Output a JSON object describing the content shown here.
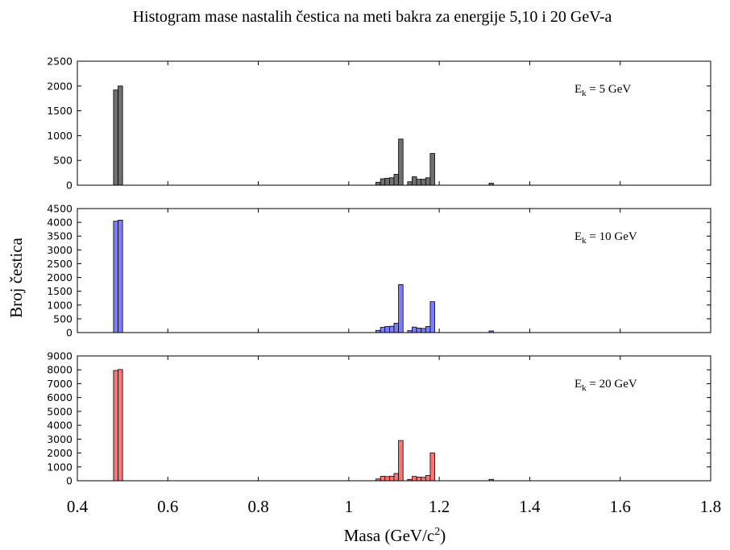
{
  "chart_data": {
    "type": "bar",
    "title": "Histogram mase nastalih čestica na meti bakra za energije 5,10 i 20 GeV-a",
    "xlabel": "Masa (GeV/c²)",
    "xlabel_base": "Masa (GeV/c",
    "xlabel_sup": "2",
    "xlabel_close": ")",
    "ylabel": "Broj čestica",
    "xlim": [
      0.4,
      1.8
    ],
    "xticks": [
      0.4,
      0.6,
      0.8,
      1,
      1.2,
      1.4,
      1.6,
      1.8
    ],
    "xtick_labels": [
      "0.4",
      "0.6",
      "0.8",
      "1",
      "1.2",
      "1.4",
      "1.6",
      "1.8"
    ],
    "bin_width": 0.01,
    "grid": false,
    "panels": [
      {
        "annotation_base": "E",
        "annotation_sub": "k",
        "annotation_rest": " = 5 GeV",
        "color": "#707070",
        "ylim": [
          0,
          2500
        ],
        "yticks": [
          0,
          500,
          1000,
          1500,
          2000,
          2500
        ],
        "bins": [
          {
            "x": 0.485,
            "y": 1920
          },
          {
            "x": 0.495,
            "y": 2000
          },
          {
            "x": 1.065,
            "y": 60
          },
          {
            "x": 1.075,
            "y": 130
          },
          {
            "x": 1.085,
            "y": 140
          },
          {
            "x": 1.095,
            "y": 150
          },
          {
            "x": 1.105,
            "y": 220
          },
          {
            "x": 1.115,
            "y": 930
          },
          {
            "x": 1.135,
            "y": 70
          },
          {
            "x": 1.145,
            "y": 170
          },
          {
            "x": 1.155,
            "y": 120
          },
          {
            "x": 1.165,
            "y": 120
          },
          {
            "x": 1.175,
            "y": 150
          },
          {
            "x": 1.185,
            "y": 640
          },
          {
            "x": 1.315,
            "y": 40
          }
        ]
      },
      {
        "annotation_base": "E",
        "annotation_sub": "k",
        "annotation_rest": " = 10 GeV",
        "color": "#7d7dff",
        "ylim": [
          0,
          4500
        ],
        "yticks": [
          0,
          500,
          1000,
          1500,
          2000,
          2500,
          3000,
          3500,
          4000,
          4500
        ],
        "bins": [
          {
            "x": 0.485,
            "y": 4040
          },
          {
            "x": 0.495,
            "y": 4080
          },
          {
            "x": 1.065,
            "y": 80
          },
          {
            "x": 1.075,
            "y": 190
          },
          {
            "x": 1.085,
            "y": 220
          },
          {
            "x": 1.095,
            "y": 230
          },
          {
            "x": 1.105,
            "y": 340
          },
          {
            "x": 1.115,
            "y": 1740
          },
          {
            "x": 1.135,
            "y": 70
          },
          {
            "x": 1.145,
            "y": 200
          },
          {
            "x": 1.155,
            "y": 160
          },
          {
            "x": 1.165,
            "y": 150
          },
          {
            "x": 1.175,
            "y": 220
          },
          {
            "x": 1.185,
            "y": 1120
          },
          {
            "x": 1.315,
            "y": 60
          }
        ]
      },
      {
        "annotation_base": "E",
        "annotation_sub": "k",
        "annotation_rest": " = 20 GeV",
        "color": "#ff7474",
        "ylim": [
          0,
          9000
        ],
        "yticks": [
          0,
          1000,
          2000,
          3000,
          4000,
          5000,
          6000,
          7000,
          8000,
          9000
        ],
        "bins": [
          {
            "x": 0.485,
            "y": 7950
          },
          {
            "x": 0.495,
            "y": 8020
          },
          {
            "x": 1.065,
            "y": 130
          },
          {
            "x": 1.075,
            "y": 320
          },
          {
            "x": 1.085,
            "y": 300
          },
          {
            "x": 1.095,
            "y": 330
          },
          {
            "x": 1.105,
            "y": 520
          },
          {
            "x": 1.115,
            "y": 2900
          },
          {
            "x": 1.135,
            "y": 100
          },
          {
            "x": 1.145,
            "y": 310
          },
          {
            "x": 1.155,
            "y": 260
          },
          {
            "x": 1.165,
            "y": 250
          },
          {
            "x": 1.175,
            "y": 380
          },
          {
            "x": 1.185,
            "y": 2000
          },
          {
            "x": 1.315,
            "y": 100
          }
        ]
      }
    ]
  }
}
